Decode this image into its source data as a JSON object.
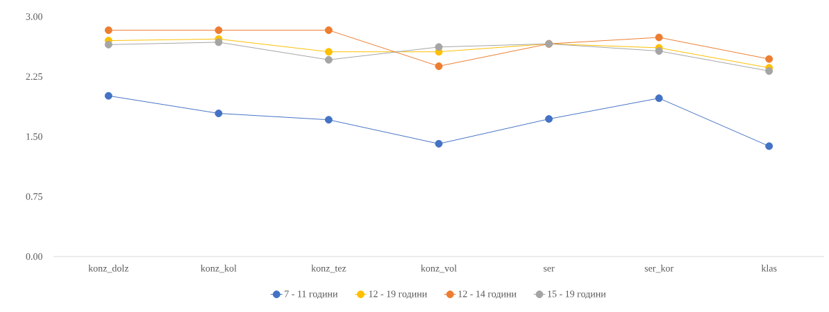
{
  "chart_data": {
    "type": "line",
    "categories": [
      "konz_dolz",
      "konz_kol",
      "konz_tez",
      "konz_vol",
      "ser",
      "ser_kor",
      "klas"
    ],
    "series": [
      {
        "name": "7 - 11 години",
        "color": "#4472c4",
        "values": [
          2.01,
          1.79,
          1.71,
          1.41,
          1.72,
          1.98,
          1.38
        ]
      },
      {
        "name": "12 - 19 години",
        "color": "#ffc000",
        "values": [
          2.7,
          2.72,
          2.56,
          2.56,
          2.66,
          2.61,
          2.36
        ]
      },
      {
        "name": "12 - 14 години",
        "color": "#ed7d31",
        "values": [
          2.83,
          2.83,
          2.83,
          2.38,
          2.66,
          2.74,
          2.47
        ]
      },
      {
        "name": "15 - 19 години",
        "color": "#a5a5a5",
        "values": [
          2.65,
          2.68,
          2.46,
          2.62,
          2.66,
          2.57,
          2.32
        ]
      }
    ],
    "ylim": [
      0,
      3
    ],
    "yticks": [
      {
        "value": 0,
        "label": "0.00"
      },
      {
        "value": 0.75,
        "label": "0.75"
      },
      {
        "value": 1.5,
        "label": "1.50"
      },
      {
        "value": 2.25,
        "label": "2.25"
      },
      {
        "value": 3,
        "label": "3.00"
      }
    ],
    "legend": "bottom",
    "marker": "circle",
    "line_style": "solid"
  }
}
